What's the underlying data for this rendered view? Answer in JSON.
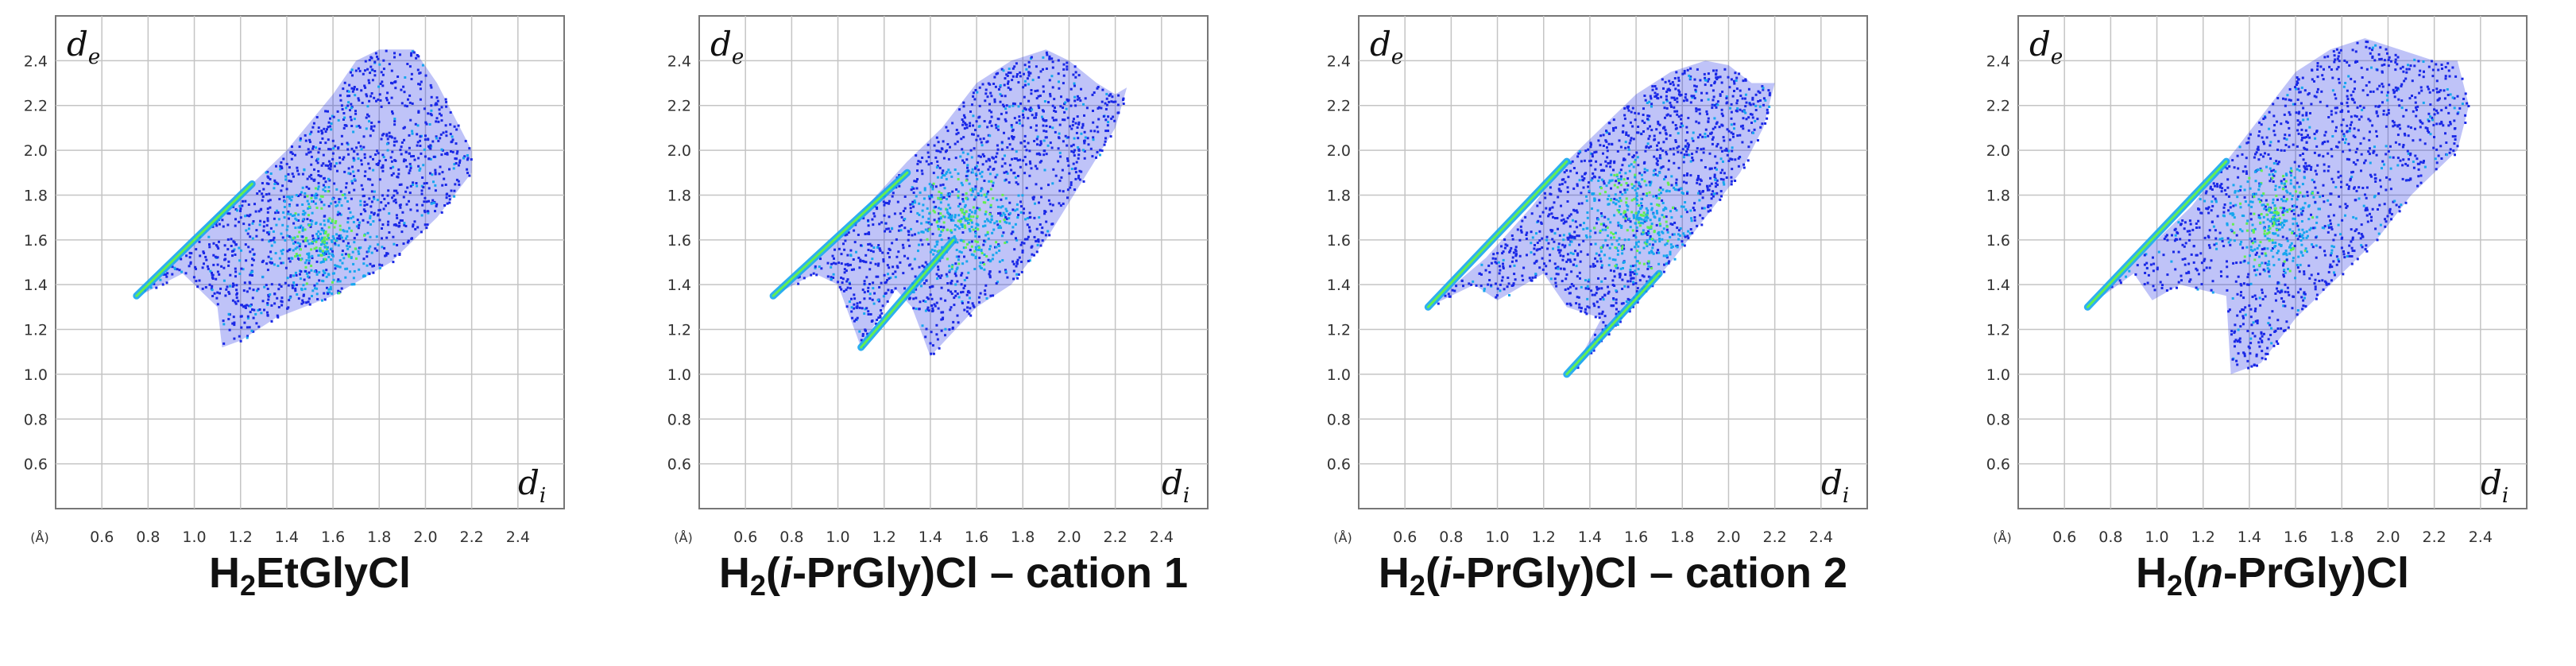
{
  "chart_data": [
    {
      "type": "scatter",
      "title": "H2EtGlyCl",
      "title_parts": {
        "h": "H",
        "sub": "2",
        "name": "EtGlyCl"
      },
      "xlabel": "d",
      "xlabel_sub": "i",
      "ylabel": "d",
      "ylabel_sub": "e",
      "unit": "(Å)",
      "xlim": [
        0.4,
        2.6
      ],
      "ylim": [
        0.4,
        2.6
      ],
      "x_ticks": [
        "0.6",
        "0.8",
        "1.0",
        "1.2",
        "1.4",
        "1.6",
        "1.8",
        "2.0",
        "2.2",
        "2.4"
      ],
      "y_ticks": [
        "0.6",
        "0.8",
        "1.0",
        "1.2",
        "1.4",
        "1.6",
        "1.8",
        "2.0",
        "2.2",
        "2.4"
      ],
      "colors": {
        "low": "#1a28e6",
        "mid": "#16a6ee",
        "high": "#63ee52"
      },
      "series": [
        {
          "name": "fingerprint outline (di, de)",
          "x": [
            0.75,
            0.95,
            1.1,
            1.25,
            1.4,
            1.6,
            1.7,
            1.8,
            1.95,
            2.05,
            2.2,
            2.2,
            2.05,
            1.85,
            1.6,
            1.35,
            1.2,
            1.12,
            1.1,
            0.95,
            0.78
          ],
          "y": [
            1.35,
            1.55,
            1.72,
            1.85,
            2.0,
            2.25,
            2.4,
            2.45,
            2.45,
            2.3,
            2.0,
            1.9,
            1.7,
            1.5,
            1.35,
            1.25,
            1.15,
            1.12,
            1.3,
            1.45,
            1.36
          ]
        }
      ],
      "dense_regions": [
        {
          "name": "spike",
          "from": [
            0.75,
            1.35
          ],
          "to": [
            1.25,
            1.85
          ]
        },
        {
          "name": "central cluster",
          "center": [
            1.55,
            1.6
          ]
        }
      ]
    },
    {
      "type": "scatter",
      "title": "H2(i-PrGly)Cl – cation 1",
      "title_parts": {
        "h": "H",
        "sub": "2",
        "pre": "(",
        "it": "i",
        "post": "-PrGly)Cl – cation 1"
      },
      "xlabel": "d",
      "xlabel_sub": "i",
      "ylabel": "d",
      "ylabel_sub": "e",
      "unit": "(Å)",
      "xlim": [
        0.4,
        2.6
      ],
      "ylim": [
        0.4,
        2.6
      ],
      "x_ticks": [
        "0.6",
        "0.8",
        "1.0",
        "1.2",
        "1.4",
        "1.6",
        "1.8",
        "2.0",
        "2.2",
        "2.4"
      ],
      "y_ticks": [
        "0.6",
        "0.8",
        "1.0",
        "1.2",
        "1.4",
        "1.6",
        "1.8",
        "2.0",
        "2.2",
        "2.4"
      ],
      "colors": {
        "low": "#1a28e6",
        "mid": "#16a6ee",
        "high": "#63ee52"
      },
      "series": [
        {
          "name": "fingerprint outline (di, de)",
          "x": [
            0.72,
            0.95,
            1.15,
            1.3,
            1.45,
            1.6,
            1.75,
            1.9,
            2.0,
            2.12,
            2.2,
            2.25,
            2.2,
            2.05,
            1.9,
            1.75,
            1.6,
            1.4,
            1.32,
            1.25,
            1.1,
            1.0,
            0.9,
            0.72
          ],
          "y": [
            1.35,
            1.55,
            1.78,
            1.95,
            2.1,
            2.3,
            2.4,
            2.45,
            2.4,
            2.3,
            2.25,
            2.28,
            2.1,
            1.85,
            1.6,
            1.4,
            1.3,
            1.08,
            1.3,
            1.38,
            1.12,
            1.4,
            1.45,
            1.35
          ]
        }
      ],
      "dense_regions": [
        {
          "name": "spike",
          "from": [
            0.72,
            1.35
          ],
          "to": [
            1.3,
            1.9
          ]
        },
        {
          "name": "lower spike",
          "from": [
            1.1,
            1.12
          ],
          "to": [
            1.5,
            1.6
          ]
        },
        {
          "name": "central cluster",
          "center": [
            1.55,
            1.7
          ]
        }
      ]
    },
    {
      "type": "scatter",
      "title": "H2(i-PrGly)Cl – cation 2",
      "title_parts": {
        "h": "H",
        "sub": "2",
        "pre": "(",
        "it": "i",
        "post": "-PrGly)Cl – cation 2"
      },
      "xlabel": "d",
      "xlabel_sub": "i",
      "ylabel": "d",
      "ylabel_sub": "e",
      "unit": "(Å)",
      "xlim": [
        0.4,
        2.6
      ],
      "ylim": [
        0.4,
        2.6
      ],
      "x_ticks": [
        "0.6",
        "0.8",
        "1.0",
        "1.2",
        "1.4",
        "1.6",
        "1.8",
        "2.0",
        "2.2",
        "2.4"
      ],
      "y_ticks": [
        "0.6",
        "0.8",
        "1.0",
        "1.2",
        "1.4",
        "1.6",
        "1.8",
        "2.0",
        "2.2",
        "2.4"
      ],
      "colors": {
        "low": "#1a28e6",
        "mid": "#16a6ee",
        "high": "#63ee52"
      },
      "series": [
        {
          "name": "fingerprint outline (di, de)",
          "x": [
            0.7,
            0.95,
            1.15,
            1.3,
            1.45,
            1.6,
            1.75,
            1.9,
            2.0,
            2.1,
            2.2,
            2.15,
            2.05,
            1.9,
            1.75,
            1.6,
            1.5,
            1.32,
            1.45,
            1.3,
            1.2,
            1.0,
            0.9,
            0.7
          ],
          "y": [
            1.3,
            1.52,
            1.75,
            1.95,
            2.1,
            2.25,
            2.35,
            2.4,
            2.38,
            2.3,
            2.3,
            2.1,
            1.9,
            1.7,
            1.5,
            1.32,
            1.2,
            1.0,
            1.25,
            1.3,
            1.45,
            1.33,
            1.4,
            1.3
          ]
        }
      ],
      "dense_regions": [
        {
          "name": "spike",
          "from": [
            0.7,
            1.3
          ],
          "to": [
            1.3,
            1.95
          ]
        },
        {
          "name": "lower spike",
          "from": [
            1.3,
            1.0
          ],
          "to": [
            1.7,
            1.45
          ]
        },
        {
          "name": "central cluster",
          "center": [
            1.6,
            1.7
          ]
        }
      ]
    },
    {
      "type": "scatter",
      "title": "H2(n-PrGly)Cl",
      "title_parts": {
        "h": "H",
        "sub": "2",
        "pre": "(",
        "it": "n",
        "post": "-PrGly)Cl"
      },
      "xlabel": "d",
      "xlabel_sub": "i",
      "ylabel": "d",
      "ylabel_sub": "e",
      "unit": "(Å)",
      "xlim": [
        0.4,
        2.6
      ],
      "ylim": [
        0.4,
        2.6
      ],
      "x_ticks": [
        "0.6",
        "0.8",
        "1.0",
        "1.2",
        "1.4",
        "1.6",
        "1.8",
        "2.0",
        "2.2",
        "2.4"
      ],
      "y_ticks": [
        "0.6",
        "0.8",
        "1.0",
        "1.2",
        "1.4",
        "1.6",
        "1.8",
        "2.0",
        "2.2",
        "2.4"
      ],
      "colors": {
        "low": "#1a28e6",
        "mid": "#16a6ee",
        "high": "#63ee52"
      },
      "series": [
        {
          "name": "fingerprint outline (di, de)",
          "x": [
            0.7,
            0.95,
            1.15,
            1.3,
            1.45,
            1.6,
            1.75,
            1.9,
            2.05,
            2.2,
            2.3,
            2.35,
            2.3,
            2.1,
            1.95,
            1.8,
            1.6,
            1.45,
            1.32,
            1.3,
            1.1,
            0.98,
            0.9,
            0.7
          ],
          "y": [
            1.3,
            1.55,
            1.75,
            1.95,
            2.15,
            2.35,
            2.45,
            2.5,
            2.45,
            2.4,
            2.4,
            2.2,
            2.0,
            1.8,
            1.6,
            1.45,
            1.25,
            1.05,
            1.0,
            1.35,
            1.4,
            1.33,
            1.45,
            1.3
          ]
        }
      ],
      "dense_regions": [
        {
          "name": "spike",
          "from": [
            0.7,
            1.3
          ],
          "to": [
            1.3,
            1.95
          ]
        },
        {
          "name": "central cluster",
          "center": [
            1.5,
            1.7
          ]
        }
      ]
    }
  ]
}
